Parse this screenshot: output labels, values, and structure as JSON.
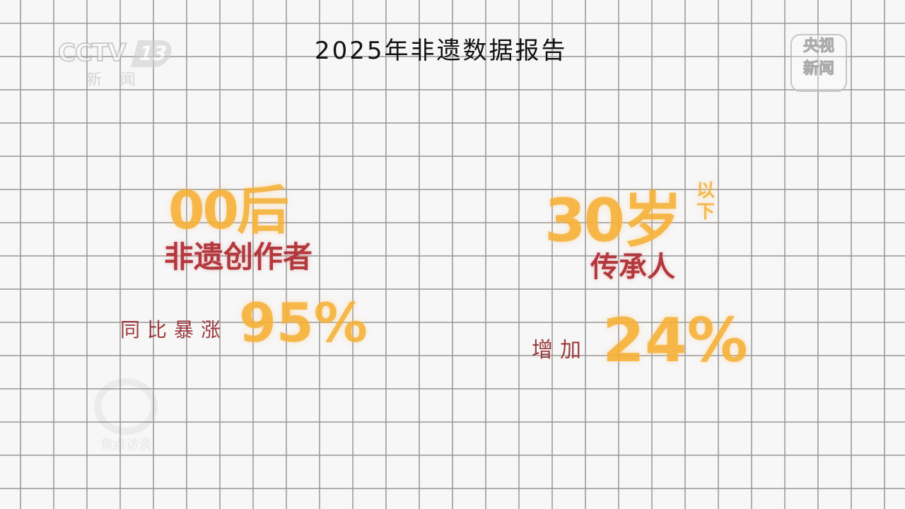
{
  "title": "2025年非遗数据报告",
  "channel_logo": {
    "brand": "CCTV",
    "number": "13",
    "subtitle": "新闻"
  },
  "corner_logo": {
    "line1": "央视",
    "line2": "新闻"
  },
  "watermark": "焦点访谈",
  "left_stat": {
    "headline": "00后",
    "subject": "非遗创作者",
    "label": "同比暴涨",
    "value": "95%"
  },
  "right_stat": {
    "headline": "30岁",
    "headline_suffix": "以下",
    "subject": "传承人",
    "label": "增加",
    "value": "24%"
  },
  "colors": {
    "highlight": "#f4af32",
    "accent_red": "#b2393e",
    "grid": "#969696"
  }
}
